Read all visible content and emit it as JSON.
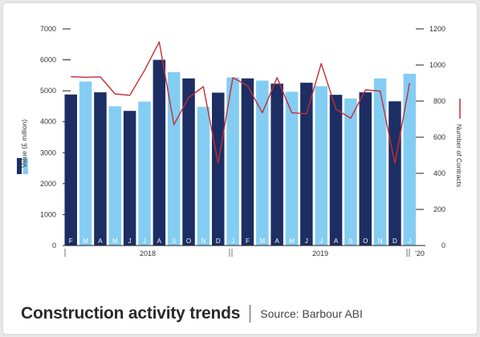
{
  "caption": {
    "title": "Construction activity trends",
    "source": "Source: Barbour ABI"
  },
  "colors": {
    "dark_bar": "#1c2e63",
    "light_bar": "#83cdf3",
    "line": "#c62c35",
    "axis": "#222222"
  },
  "chart_data": {
    "type": "bar",
    "categories": [
      "F",
      "M",
      "A",
      "M",
      "J",
      "J",
      "A",
      "S",
      "O",
      "N",
      "D",
      "J",
      "F",
      "M",
      "A",
      "M",
      "J",
      "J",
      "A",
      "S",
      "O",
      "N",
      "D",
      "J"
    ],
    "year_labels": [
      "2018",
      "2019",
      "'20"
    ],
    "bar_shades": [
      "dark",
      "light",
      "dark",
      "light",
      "dark",
      "light",
      "dark",
      "light",
      "dark",
      "light",
      "dark",
      "light",
      "dark",
      "light",
      "dark",
      "light",
      "dark",
      "light",
      "dark",
      "light",
      "dark",
      "light",
      "dark",
      "light"
    ],
    "series": [
      {
        "name": "Value (£ million)",
        "type": "bar",
        "axis": "left",
        "values": [
          4880,
          5300,
          4950,
          4500,
          4350,
          4650,
          6000,
          5600,
          5400,
          4480,
          4940,
          5430,
          5400,
          5330,
          5230,
          4970,
          5260,
          5150,
          4870,
          4750,
          4950,
          5400,
          4660,
          5550
        ]
      },
      {
        "name": "Number of Contracts",
        "type": "line",
        "axis": "right",
        "values": [
          935,
          932,
          934,
          840,
          832,
          970,
          1128,
          670,
          820,
          880,
          455,
          930,
          885,
          735,
          930,
          735,
          730,
          1008,
          755,
          705,
          862,
          855,
          455,
          900
        ]
      }
    ],
    "y_left": {
      "label": "Value (£ million)",
      "ylim": [
        0,
        7000
      ],
      "ticks": [
        0,
        1000,
        2000,
        3000,
        4000,
        5000,
        6000,
        7000
      ]
    },
    "y_right": {
      "label": "Number of Contracts",
      "ylim": [
        0,
        1200
      ],
      "ticks": [
        0,
        200,
        400,
        600,
        800,
        1000,
        1200
      ]
    },
    "grid": false
  }
}
